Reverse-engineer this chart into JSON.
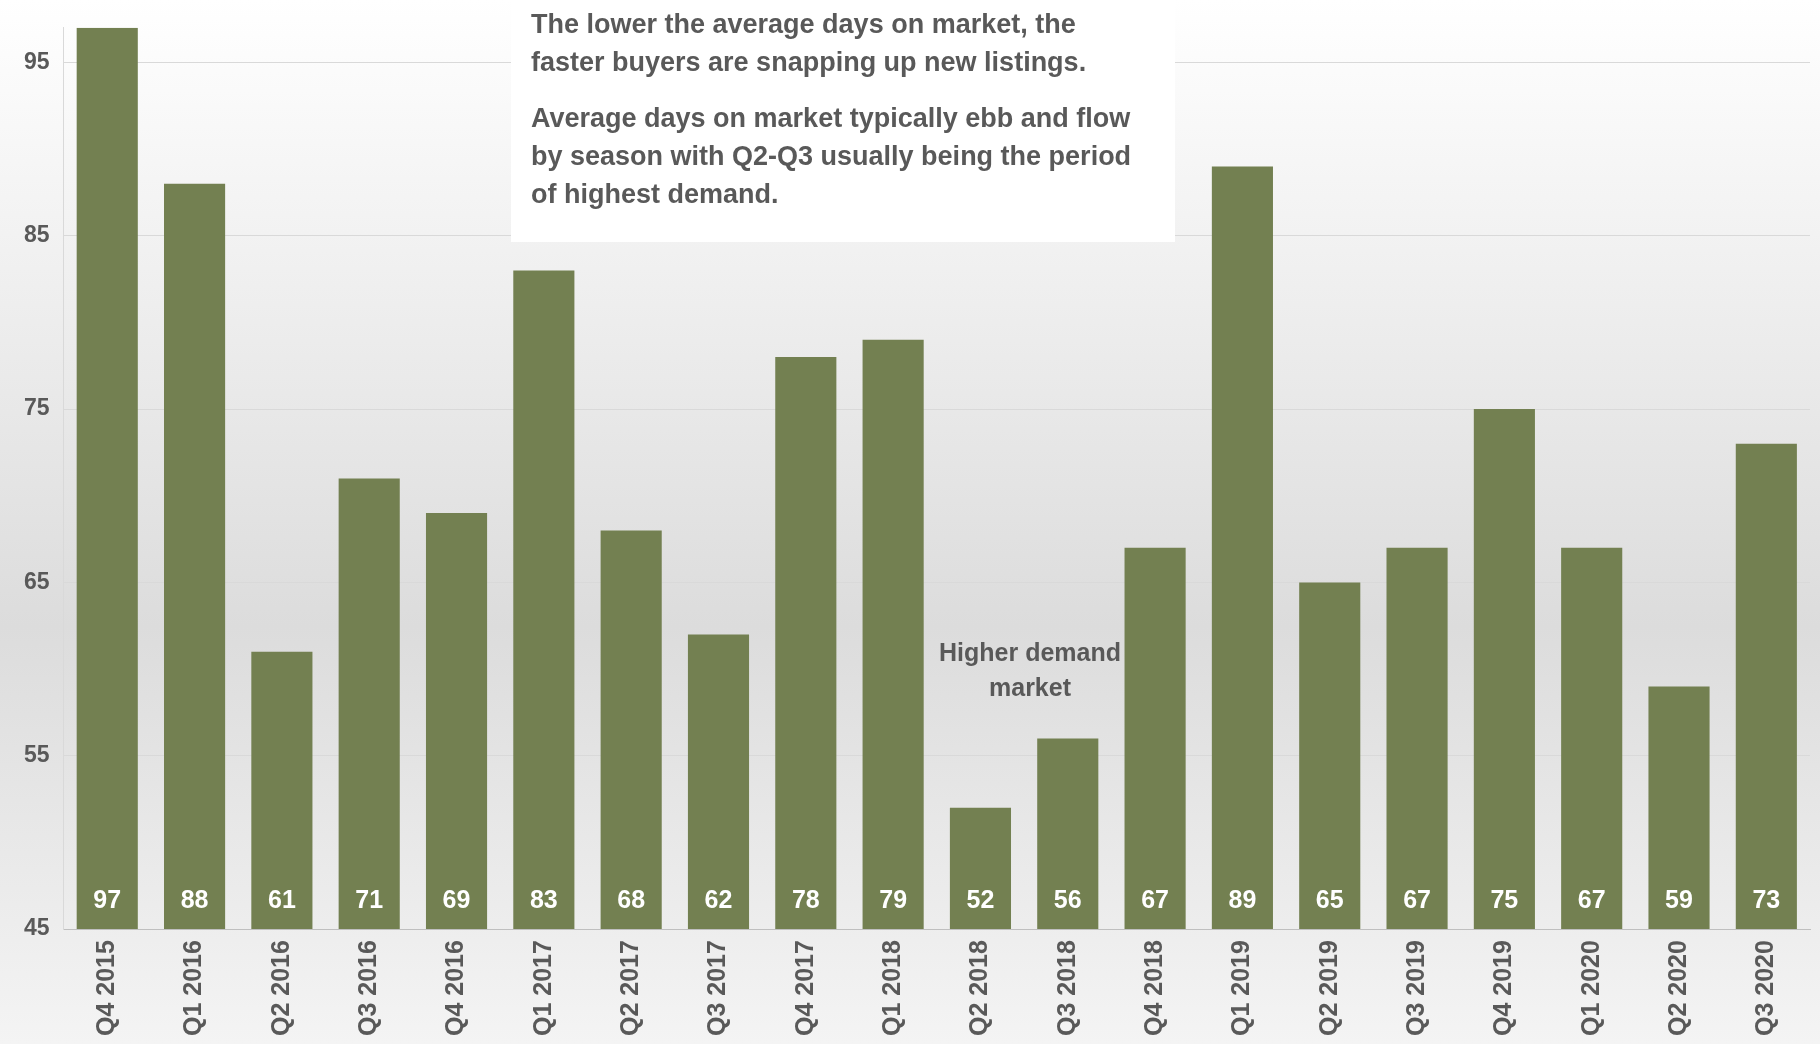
{
  "chart_data": {
    "type": "bar",
    "categories": [
      "Q4 2015",
      "Q1 2016",
      "Q2 2016",
      "Q3 2016",
      "Q4 2016",
      "Q1 2017",
      "Q2 2017",
      "Q3 2017",
      "Q4 2017",
      "Q1 2018",
      "Q2 2018",
      "Q3 2018",
      "Q4 2018",
      "Q1 2019",
      "Q2 2019",
      "Q3 2019",
      "Q4 2019",
      "Q1 2020",
      "Q2 2020",
      "Q3 2020"
    ],
    "values": [
      97,
      88,
      61,
      71,
      69,
      83,
      68,
      62,
      78,
      79,
      52,
      56,
      67,
      89,
      65,
      67,
      75,
      67,
      59,
      73
    ],
    "color": "#738051",
    "ylim": [
      45,
      97
    ],
    "yticks": [
      45,
      55,
      65,
      75,
      85,
      95
    ],
    "grid": "y",
    "data_labels": true,
    "legend": false,
    "annotations": [
      "The lower the average days on market, the faster buyers are snapping up new listings.",
      "Average days on market typically ebb and flow by season with Q2-Q3 usually being the period of highest demand.",
      "Higher demand market"
    ]
  }
}
